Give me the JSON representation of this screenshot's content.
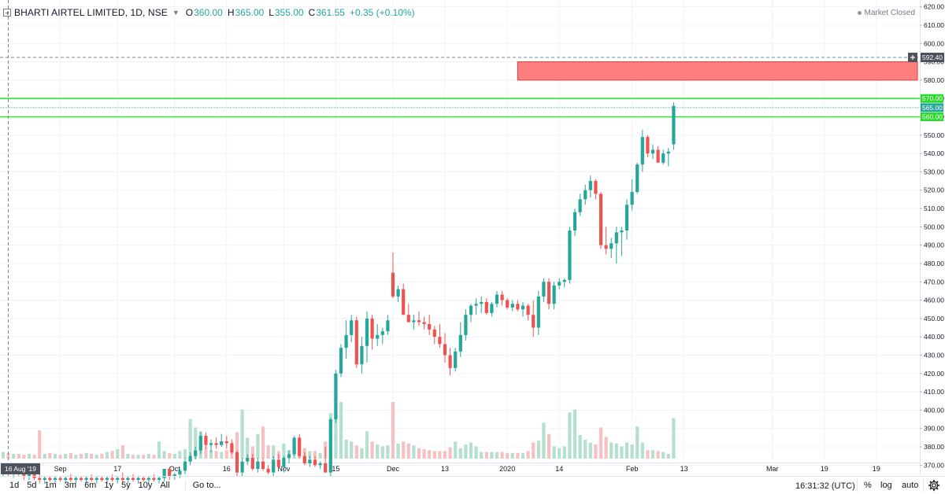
{
  "legend": {
    "title": "BHARTI AIRTEL LIMITED, 1D, NSE",
    "open_label": "O",
    "open": "360.00",
    "high_label": "H",
    "high": "365.00",
    "low_label": "L",
    "low": "355.00",
    "close_label": "C",
    "close": "361.55",
    "change": "+0.35 (+0.10%)"
  },
  "status": {
    "market": "Market Closed"
  },
  "crosshair": {
    "price": "592.40",
    "date": "16 Aug '19"
  },
  "toolbar": {
    "timeframes": [
      "1d",
      "5d",
      "1m",
      "3m",
      "6m",
      "1y",
      "5y",
      "10y",
      "All"
    ],
    "goto": "Go to...",
    "clock": "16:31:32 (UTC)",
    "percent": "%",
    "log": "log",
    "auto": "auto"
  },
  "colors": {
    "up": "#26a69a",
    "down": "#ef5350",
    "up_volume": "#b5dfcf",
    "down_volume": "#f5c1c4",
    "grid": "#f0f3fa",
    "hline": "#33e633",
    "zone_fill": "#ff7f7f",
    "zone_border": "#e03b3b"
  },
  "chart_data": {
    "type": "candlestick",
    "ylim": [
      365,
      622
    ],
    "y_ticks": [
      370,
      380,
      390,
      400,
      410,
      420,
      430,
      440,
      450,
      460,
      470,
      480,
      490,
      500,
      510,
      520,
      530,
      540,
      550,
      560,
      570,
      580,
      590,
      600,
      610,
      620
    ],
    "y_tick_labels": [
      "370.00",
      "380.00",
      "390.00",
      "400.00",
      "410.00",
      "420.00",
      "430.00",
      "440.00",
      "450.00",
      "460.00",
      "470.00",
      "480.00",
      "490.00",
      "500.00",
      "510.00",
      "520.00",
      "530.00",
      "540.00",
      "550.00",
      "560.00",
      "570.00",
      "580.00",
      "590.00",
      "600.00",
      "610.00",
      "620.00"
    ],
    "x_labels": [
      {
        "label": "Sep",
        "bar": 11
      },
      {
        "label": "17",
        "bar": 22
      },
      {
        "label": "Oct",
        "bar": 33
      },
      {
        "label": "16",
        "bar": 43
      },
      {
        "label": "Nov",
        "bar": 54
      },
      {
        "label": "15",
        "bar": 64
      },
      {
        "label": "Dec",
        "bar": 75
      },
      {
        "label": "13",
        "bar": 85
      },
      {
        "label": "2020",
        "bar": 97
      },
      {
        "label": "14",
        "bar": 107
      },
      {
        "label": "Feb",
        "bar": 121
      },
      {
        "label": "13",
        "bar": 131
      },
      {
        "label": "Mar",
        "bar": 148
      },
      {
        "label": "19",
        "bar": 158
      },
      {
        "label": "19",
        "bar": 168
      }
    ],
    "horizontal_levels": [
      {
        "price": 570,
        "label": "570.00"
      },
      {
        "price": 565,
        "label": "565.00"
      },
      {
        "price": 560,
        "label": "560.00"
      }
    ],
    "resistance_zone": {
      "from_bar": 99,
      "to_bar": 181,
      "price_low": 580,
      "price_high": 590
    },
    "volume_max": 60,
    "candles": [
      {
        "o": 366,
        "h": 369,
        "l": 364,
        "c": 367,
        "v": 7
      },
      {
        "o": 367,
        "h": 368,
        "l": 364,
        "c": 365,
        "v": 6
      },
      {
        "o": 365,
        "h": 367,
        "l": 363,
        "c": 366,
        "v": 5
      },
      {
        "o": 366,
        "h": 368,
        "l": 364,
        "c": 365,
        "v": 5
      },
      {
        "o": 365,
        "h": 366,
        "l": 362,
        "c": 364,
        "v": 4
      },
      {
        "o": 364,
        "h": 366,
        "l": 362,
        "c": 365,
        "v": 5
      },
      {
        "o": 365,
        "h": 366,
        "l": 362,
        "c": 363,
        "v": 4
      },
      {
        "o": 363,
        "h": 365,
        "l": 360,
        "c": 362,
        "v": 30
      },
      {
        "o": 362,
        "h": 364,
        "l": 360,
        "c": 363,
        "v": 5
      },
      {
        "o": 363,
        "h": 364,
        "l": 361,
        "c": 362,
        "v": 6
      },
      {
        "o": 362,
        "h": 364,
        "l": 360,
        "c": 363,
        "v": 5
      },
      {
        "o": 363,
        "h": 364,
        "l": 361,
        "c": 362,
        "v": 4
      },
      {
        "o": 362,
        "h": 364,
        "l": 360,
        "c": 363,
        "v": 5
      },
      {
        "o": 363,
        "h": 365,
        "l": 361,
        "c": 362,
        "v": 6
      },
      {
        "o": 362,
        "h": 364,
        "l": 360,
        "c": 363,
        "v": 4
      },
      {
        "o": 363,
        "h": 364,
        "l": 361,
        "c": 362,
        "v": 5
      },
      {
        "o": 362,
        "h": 364,
        "l": 360,
        "c": 363,
        "v": 6
      },
      {
        "o": 363,
        "h": 365,
        "l": 361,
        "c": 362,
        "v": 5
      },
      {
        "o": 362,
        "h": 364,
        "l": 360,
        "c": 363,
        "v": 4
      },
      {
        "o": 363,
        "h": 364,
        "l": 361,
        "c": 362,
        "v": 5
      },
      {
        "o": 362,
        "h": 364,
        "l": 360,
        "c": 363,
        "v": 7
      },
      {
        "o": 363,
        "h": 365,
        "l": 361,
        "c": 362,
        "v": 8
      },
      {
        "o": 362,
        "h": 364,
        "l": 360,
        "c": 363,
        "v": 10
      },
      {
        "o": 363,
        "h": 366,
        "l": 361,
        "c": 362,
        "v": 14
      },
      {
        "o": 362,
        "h": 364,
        "l": 360,
        "c": 363,
        "v": 5
      },
      {
        "o": 363,
        "h": 365,
        "l": 361,
        "c": 362,
        "v": 4
      },
      {
        "o": 362,
        "h": 364,
        "l": 360,
        "c": 363,
        "v": 4
      },
      {
        "o": 363,
        "h": 364,
        "l": 361,
        "c": 362,
        "v": 4
      },
      {
        "o": 362,
        "h": 364,
        "l": 360,
        "c": 363,
        "v": 5
      },
      {
        "o": 363,
        "h": 365,
        "l": 361,
        "c": 362,
        "v": 4
      },
      {
        "o": 362,
        "h": 364,
        "l": 360,
        "c": 363,
        "v": 18
      },
      {
        "o": 363,
        "h": 367,
        "l": 361,
        "c": 368,
        "v": 8
      },
      {
        "o": 368,
        "h": 369,
        "l": 362,
        "c": 364,
        "v": 6
      },
      {
        "o": 364,
        "h": 366,
        "l": 362,
        "c": 365,
        "v": 5
      },
      {
        "o": 365,
        "h": 368,
        "l": 363,
        "c": 367,
        "v": 8
      },
      {
        "o": 367,
        "h": 374,
        "l": 365,
        "c": 372,
        "v": 10
      },
      {
        "o": 372,
        "h": 377,
        "l": 370,
        "c": 375,
        "v": 42
      },
      {
        "o": 375,
        "h": 380,
        "l": 373,
        "c": 378,
        "v": 33
      },
      {
        "o": 378,
        "h": 388,
        "l": 376,
        "c": 386,
        "v": 29
      },
      {
        "o": 386,
        "h": 388,
        "l": 379,
        "c": 381,
        "v": 12
      },
      {
        "o": 381,
        "h": 384,
        "l": 377,
        "c": 382,
        "v": 9
      },
      {
        "o": 382,
        "h": 385,
        "l": 379,
        "c": 381,
        "v": 8
      },
      {
        "o": 381,
        "h": 387,
        "l": 380,
        "c": 383,
        "v": 7
      },
      {
        "o": 383,
        "h": 386,
        "l": 379,
        "c": 382,
        "v": 9
      },
      {
        "o": 382,
        "h": 384,
        "l": 376,
        "c": 377,
        "v": 13
      },
      {
        "o": 377,
        "h": 378,
        "l": 364,
        "c": 366,
        "v": 28
      },
      {
        "o": 366,
        "h": 374,
        "l": 364,
        "c": 372,
        "v": 52
      },
      {
        "o": 372,
        "h": 376,
        "l": 370,
        "c": 374,
        "v": 22
      },
      {
        "o": 374,
        "h": 376,
        "l": 367,
        "c": 368,
        "v": 13
      },
      {
        "o": 368,
        "h": 374,
        "l": 366,
        "c": 372,
        "v": 26
      },
      {
        "o": 372,
        "h": 374,
        "l": 367,
        "c": 368,
        "v": 34
      },
      {
        "o": 368,
        "h": 370,
        "l": 365,
        "c": 366,
        "v": 14
      },
      {
        "o": 366,
        "h": 375,
        "l": 364,
        "c": 373,
        "v": 14
      },
      {
        "o": 373,
        "h": 376,
        "l": 368,
        "c": 369,
        "v": 8
      },
      {
        "o": 369,
        "h": 375,
        "l": 366,
        "c": 374,
        "v": 16
      },
      {
        "o": 374,
        "h": 378,
        "l": 371,
        "c": 376,
        "v": 9
      },
      {
        "o": 376,
        "h": 386,
        "l": 375,
        "c": 385,
        "v": 11
      },
      {
        "o": 385,
        "h": 387,
        "l": 374,
        "c": 375,
        "v": 20
      },
      {
        "o": 375,
        "h": 377,
        "l": 370,
        "c": 371,
        "v": 11
      },
      {
        "o": 371,
        "h": 375,
        "l": 369,
        "c": 373,
        "v": 8
      },
      {
        "o": 373,
        "h": 375,
        "l": 369,
        "c": 370,
        "v": 8
      },
      {
        "o": 370,
        "h": 372,
        "l": 368,
        "c": 371,
        "v": 6
      },
      {
        "o": 371,
        "h": 380,
        "l": 366,
        "c": 366,
        "v": 18
      },
      {
        "o": 366,
        "h": 396,
        "l": 364,
        "c": 395,
        "v": 48
      },
      {
        "o": 395,
        "h": 422,
        "l": 393,
        "c": 420,
        "v": 54
      },
      {
        "o": 420,
        "h": 436,
        "l": 418,
        "c": 434,
        "v": 60
      },
      {
        "o": 434,
        "h": 449,
        "l": 428,
        "c": 441,
        "v": 20
      },
      {
        "o": 441,
        "h": 452,
        "l": 437,
        "c": 449,
        "v": 18
      },
      {
        "o": 449,
        "h": 451,
        "l": 423,
        "c": 425,
        "v": 14
      },
      {
        "o": 425,
        "h": 440,
        "l": 420,
        "c": 435,
        "v": 11
      },
      {
        "o": 435,
        "h": 454,
        "l": 426,
        "c": 450,
        "v": 29
      },
      {
        "o": 450,
        "h": 452,
        "l": 433,
        "c": 439,
        "v": 18
      },
      {
        "o": 439,
        "h": 447,
        "l": 435,
        "c": 441,
        "v": 15
      },
      {
        "o": 441,
        "h": 445,
        "l": 436,
        "c": 443,
        "v": 13
      },
      {
        "o": 443,
        "h": 452,
        "l": 441,
        "c": 449,
        "v": 14
      },
      {
        "o": 475,
        "h": 486,
        "l": 461,
        "c": 462,
        "v": 60
      },
      {
        "o": 462,
        "h": 468,
        "l": 459,
        "c": 466,
        "v": 16
      },
      {
        "o": 466,
        "h": 469,
        "l": 452,
        "c": 452,
        "v": 18
      },
      {
        "o": 452,
        "h": 458,
        "l": 448,
        "c": 448,
        "v": 16
      },
      {
        "o": 448,
        "h": 452,
        "l": 444,
        "c": 449,
        "v": 14
      },
      {
        "o": 449,
        "h": 454,
        "l": 446,
        "c": 448,
        "v": 11
      },
      {
        "o": 448,
        "h": 451,
        "l": 444,
        "c": 447,
        "v": 10
      },
      {
        "o": 447,
        "h": 452,
        "l": 441,
        "c": 444,
        "v": 9
      },
      {
        "o": 444,
        "h": 446,
        "l": 436,
        "c": 440,
        "v": 8
      },
      {
        "o": 440,
        "h": 447,
        "l": 434,
        "c": 436,
        "v": 8
      },
      {
        "o": 436,
        "h": 442,
        "l": 426,
        "c": 430,
        "v": 8
      },
      {
        "o": 430,
        "h": 434,
        "l": 419,
        "c": 423,
        "v": 12
      },
      {
        "o": 423,
        "h": 434,
        "l": 421,
        "c": 432,
        "v": 18
      },
      {
        "o": 432,
        "h": 448,
        "l": 429,
        "c": 441,
        "v": 11
      },
      {
        "o": 441,
        "h": 455,
        "l": 438,
        "c": 452,
        "v": 15
      },
      {
        "o": 452,
        "h": 458,
        "l": 448,
        "c": 457,
        "v": 17
      },
      {
        "o": 457,
        "h": 461,
        "l": 452,
        "c": 458,
        "v": 13
      },
      {
        "o": 458,
        "h": 462,
        "l": 453,
        "c": 459,
        "v": 7
      },
      {
        "o": 459,
        "h": 461,
        "l": 452,
        "c": 453,
        "v": 7
      },
      {
        "o": 453,
        "h": 459,
        "l": 451,
        "c": 458,
        "v": 7
      },
      {
        "o": 458,
        "h": 465,
        "l": 456,
        "c": 463,
        "v": 7
      },
      {
        "o": 463,
        "h": 465,
        "l": 457,
        "c": 460,
        "v": 7
      },
      {
        "o": 460,
        "h": 461,
        "l": 455,
        "c": 456,
        "v": 6
      },
      {
        "o": 456,
        "h": 460,
        "l": 454,
        "c": 458,
        "v": 6
      },
      {
        "o": 458,
        "h": 460,
        "l": 454,
        "c": 455,
        "v": 6
      },
      {
        "o": 455,
        "h": 459,
        "l": 451,
        "c": 457,
        "v": 6
      },
      {
        "o": 457,
        "h": 458,
        "l": 449,
        "c": 452,
        "v": 8
      },
      {
        "o": 452,
        "h": 460,
        "l": 440,
        "c": 445,
        "v": 17
      },
      {
        "o": 445,
        "h": 465,
        "l": 441,
        "c": 462,
        "v": 19
      },
      {
        "o": 462,
        "h": 472,
        "l": 459,
        "c": 470,
        "v": 38
      },
      {
        "o": 470,
        "h": 472,
        "l": 455,
        "c": 458,
        "v": 26
      },
      {
        "o": 458,
        "h": 470,
        "l": 455,
        "c": 468,
        "v": 13
      },
      {
        "o": 468,
        "h": 472,
        "l": 466,
        "c": 470,
        "v": 11
      },
      {
        "o": 470,
        "h": 472,
        "l": 467,
        "c": 471,
        "v": 13
      },
      {
        "o": 471,
        "h": 500,
        "l": 469,
        "c": 498,
        "v": 49
      },
      {
        "o": 498,
        "h": 510,
        "l": 495,
        "c": 508,
        "v": 52
      },
      {
        "o": 508,
        "h": 518,
        "l": 506,
        "c": 515,
        "v": 25
      },
      {
        "o": 515,
        "h": 523,
        "l": 512,
        "c": 520,
        "v": 20
      },
      {
        "o": 520,
        "h": 528,
        "l": 516,
        "c": 525,
        "v": 17
      },
      {
        "o": 525,
        "h": 526,
        "l": 515,
        "c": 518,
        "v": 15
      },
      {
        "o": 518,
        "h": 519,
        "l": 488,
        "c": 490,
        "v": 33
      },
      {
        "o": 490,
        "h": 500,
        "l": 485,
        "c": 488,
        "v": 23
      },
      {
        "o": 488,
        "h": 494,
        "l": 483,
        "c": 491,
        "v": 17
      },
      {
        "o": 491,
        "h": 500,
        "l": 480,
        "c": 497,
        "v": 16
      },
      {
        "o": 497,
        "h": 500,
        "l": 484,
        "c": 498,
        "v": 13
      },
      {
        "o": 498,
        "h": 515,
        "l": 493,
        "c": 512,
        "v": 17
      },
      {
        "o": 512,
        "h": 526,
        "l": 509,
        "c": 519,
        "v": 15
      },
      {
        "o": 519,
        "h": 535,
        "l": 518,
        "c": 534,
        "v": 34
      },
      {
        "o": 534,
        "h": 553,
        "l": 530,
        "c": 549,
        "v": 17
      },
      {
        "o": 549,
        "h": 550,
        "l": 538,
        "c": 540,
        "v": 9
      },
      {
        "o": 540,
        "h": 545,
        "l": 537,
        "c": 542,
        "v": 9
      },
      {
        "o": 542,
        "h": 544,
        "l": 535,
        "c": 535,
        "v": 8
      },
      {
        "o": 535,
        "h": 542,
        "l": 534,
        "c": 540,
        "v": 7
      },
      {
        "o": 540,
        "h": 543,
        "l": 533,
        "c": 541,
        "v": 5
      },
      {
        "o": 545,
        "h": 568,
        "l": 542,
        "c": 566,
        "v": 43
      }
    ]
  }
}
